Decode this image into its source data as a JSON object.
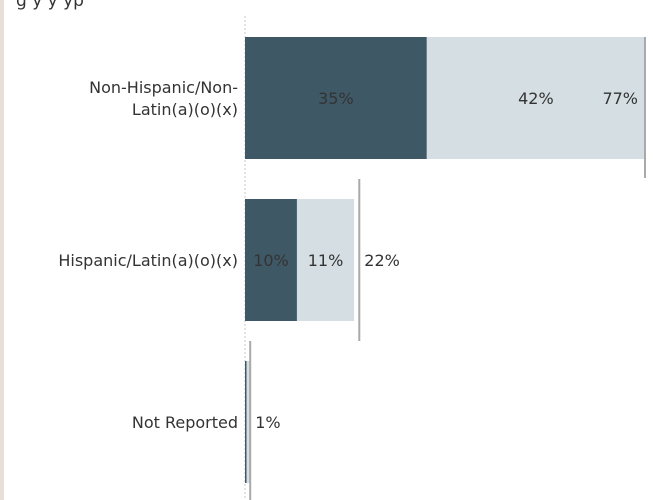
{
  "title": "g                                                    y          y                   yp",
  "chart_data": {
    "type": "bar",
    "orientation": "horizontal",
    "stacked": true,
    "categories": [
      [
        "Non-Hispanic/Non-",
        "Latin(a)(o)(x)"
      ],
      [
        "Hispanic/Latin(a)(o)(x)"
      ],
      [
        "Not Reported"
      ]
    ],
    "series": [
      {
        "values": [
          35,
          10,
          0.3
        ],
        "labels": [
          "35%",
          "10%",
          ""
        ],
        "color": "#3f5866"
      },
      {
        "values": [
          42,
          11,
          0.7
        ],
        "labels": [
          "42%",
          "11%",
          ""
        ],
        "color": "#d4dee3"
      }
    ],
    "totals": {
      "values": [
        77,
        22,
        1
      ],
      "labels": [
        "77%",
        "22%",
        "1%"
      ],
      "marker_color": "#a9a9a9"
    },
    "xlim": [
      0,
      77
    ],
    "grid": false
  }
}
